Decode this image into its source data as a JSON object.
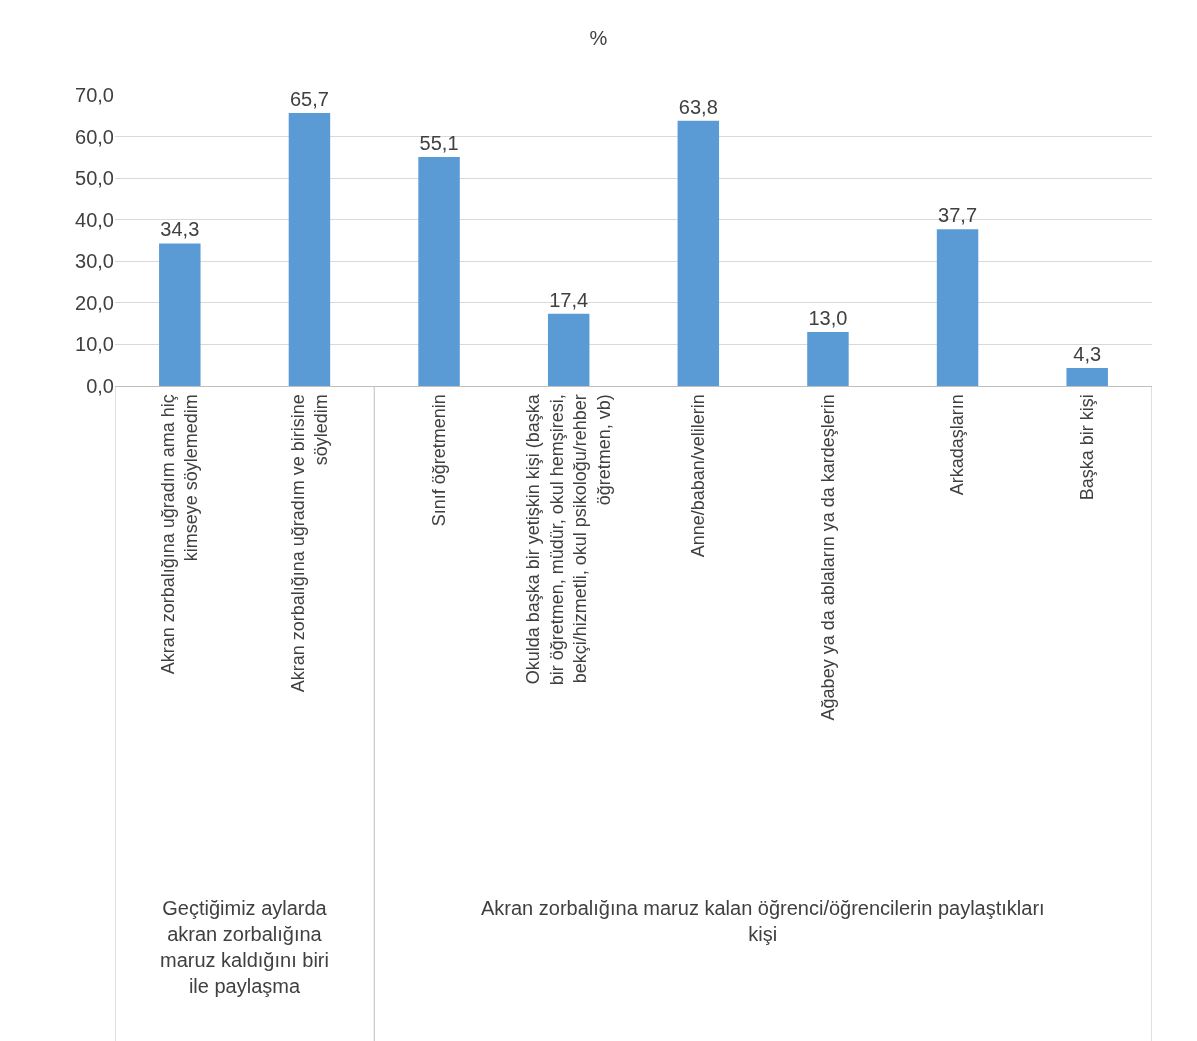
{
  "chart_data": {
    "type": "bar",
    "title": "%",
    "categories": [
      "Akran zorbalığına uğradım ama hiç kimseye söylemedim",
      "Akran zorbalığına uğradım ve birisine söyledim",
      "Sınıf öğretmenin",
      "Okulda başka bir yetişkin kişi (başka bir öğretmen, müdür, okul hemşiresi, bekçi/hizmetli, okul psikoloğu/rehber öğretmen, vb)",
      "Anne/baban/velilerin",
      "Ağabey ya da ablaların ya da kardeşlerin",
      "Arkadaşların",
      "Başka bir kişi"
    ],
    "values": [
      34.3,
      65.7,
      55.1,
      17.4,
      63.8,
      13.0,
      37.7,
      4.3
    ],
    "value_labels": [
      "34,3",
      "65,7",
      "55,1",
      "17,4",
      "63,8",
      "13,0",
      "37,7",
      "4,3"
    ],
    "color": "#5b9bd5",
    "ylim": [
      0,
      70
    ],
    "yticks": [
      {
        "value": 0,
        "label": "0,0"
      },
      {
        "value": 10,
        "label": "10,0"
      },
      {
        "value": 20,
        "label": "20,0"
      },
      {
        "value": 30,
        "label": "30,0"
      },
      {
        "value": 40,
        "label": "40,0"
      },
      {
        "value": 50,
        "label": "50,0"
      },
      {
        "value": 60,
        "label": "60,0"
      },
      {
        "value": 70,
        "label": "70,0"
      }
    ],
    "grid": "y",
    "annotations": [
      "Geçtiğimiz aylarda akran zorbalığına maruz kaldığını biri ile paylaşma",
      "Akran zorbalığına maruz kalan öğrenci/öğrencilerin paylaştıkları kişi"
    ]
  }
}
